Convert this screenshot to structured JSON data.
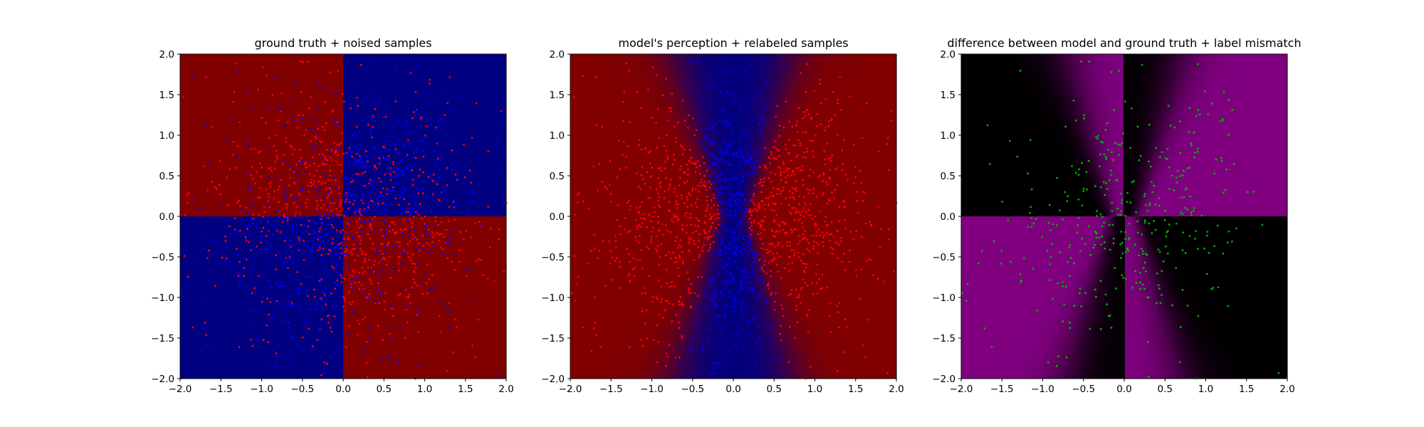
{
  "chart_data": [
    {
      "type": "heatmap",
      "title": "ground truth + noised samples",
      "xlim": [
        -2.0,
        2.0
      ],
      "ylim": [
        -2.0,
        2.0
      ],
      "xticks": [
        "−2.0",
        "−1.5",
        "−1.0",
        "−0.5",
        "0.0",
        "0.5",
        "1.0",
        "1.5",
        "2.0"
      ],
      "yticks": [
        "−2.0",
        "−1.5",
        "−1.0",
        "−0.5",
        "0.0",
        "0.5",
        "1.0",
        "1.5",
        "2.0"
      ],
      "background": {
        "description": "XOR quadrants: red where x*y<0, blue where x*y>0",
        "regions": [
          {
            "x": [
              -2,
              0
            ],
            "y": [
              0,
              2
            ],
            "color": "#800000"
          },
          {
            "x": [
              0,
              2
            ],
            "y": [
              0,
              2
            ],
            "color": "#000080"
          },
          {
            "x": [
              -2,
              0
            ],
            "y": [
              -2,
              0
            ],
            "color": "#000080"
          },
          {
            "x": [
              0,
              2
            ],
            "y": [
              -2,
              0
            ],
            "color": "#800000"
          }
        ]
      },
      "series": [
        {
          "name": "",
          "color": "#ff0000",
          "marker": "point"
        },
        {
          "name": "",
          "color": "#0000ff",
          "marker": "point"
        }
      ],
      "grid": false
    },
    {
      "type": "heatmap",
      "title": "model's perception + relabeled samples",
      "xlim": [
        -2.0,
        2.0
      ],
      "ylim": [
        -2.0,
        2.0
      ],
      "xticks": [
        "−2.0",
        "−1.5",
        "−1.0",
        "−0.5",
        "0.0",
        "0.5",
        "1.0",
        "1.5",
        "2.0"
      ],
      "yticks": [
        "−2.0",
        "−1.5",
        "−1.0",
        "−0.5",
        "0.0",
        "0.5",
        "1.0",
        "1.5",
        "2.0"
      ],
      "background": {
        "description": "blue hourglass band around x=0 widening with |y|, red elsewhere",
        "colors": [
          "#000080",
          "#800000"
        ]
      },
      "series": [
        {
          "name": "",
          "color": "#ff0000",
          "marker": "point"
        },
        {
          "name": "",
          "color": "#0000ff",
          "marker": "point"
        }
      ],
      "grid": false
    },
    {
      "type": "heatmap",
      "title": "difference between model and ground truth + label mismatch",
      "xlim": [
        -2.0,
        2.0
      ],
      "ylim": [
        -2.0,
        2.0
      ],
      "xticks": [
        "−2.0",
        "−1.5",
        "−1.0",
        "−0.5",
        "0.0",
        "0.5",
        "1.0",
        "1.5",
        "2.0"
      ],
      "yticks": [
        "−2.0",
        "−1.5",
        "−1.0",
        "−0.5",
        "0.0",
        "0.5",
        "1.0",
        "1.5",
        "2.0"
      ],
      "background": {
        "description": "purple where model differs from ground truth, black where they agree",
        "colors": [
          "#800080",
          "#000000"
        ]
      },
      "series": [
        {
          "name": "",
          "color": "#00b000",
          "marker": "point"
        }
      ],
      "grid": false
    }
  ]
}
